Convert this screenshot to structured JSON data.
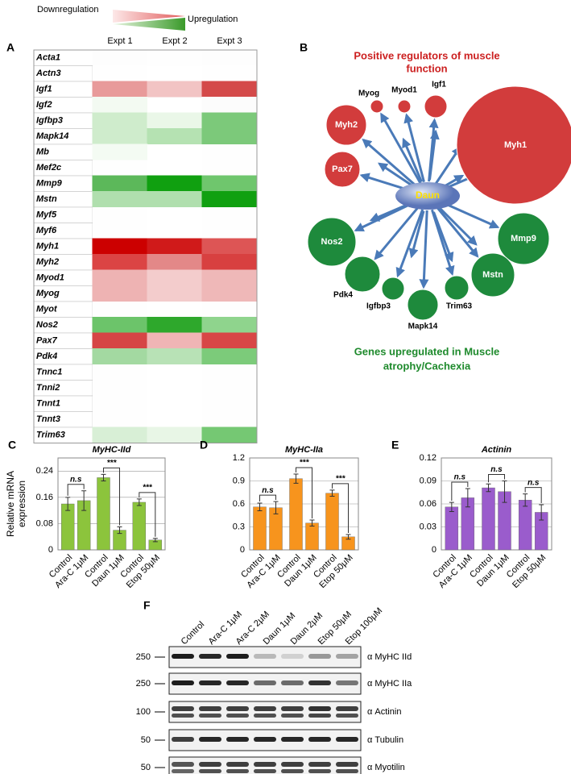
{
  "legend": {
    "down": "Downregulation",
    "up": "Upregulation"
  },
  "panel_a": {
    "label": "A",
    "columns": [
      "Expt 1",
      "Expt 2",
      "Expt 3"
    ],
    "genes": [
      "Acta1",
      "Actn3",
      "Igf1",
      "Igf2",
      "Igfbp3",
      "Mapk14",
      "Mb",
      "Mef2c",
      "Mmp9",
      "Mstn",
      "Myf5",
      "Myf6",
      "Myh1",
      "Myh2",
      "Myod1",
      "Myog",
      "Myot",
      "Nos2",
      "Pax7",
      "Pdk4",
      "Tnnc1",
      "Tnni2",
      "Tnnt1",
      "Tnnt3",
      "Trim63"
    ],
    "cells": [
      [
        "#fdfdfd",
        "#fefefe",
        "#fdfdfd"
      ],
      [
        "#fefefe",
        "#ffffff",
        "#fefefe"
      ],
      [
        "#e89a9a",
        "#f2c4c4",
        "#d44a4a"
      ],
      [
        "#f3faf2",
        "#ffffff",
        "#fcfcfc"
      ],
      [
        "#cfeccc",
        "#eaf7e8",
        "#7cc97a"
      ],
      [
        "#cfeccc",
        "#b5e2b2",
        "#7cc97a"
      ],
      [
        "#f4fbf3",
        "#ffffff",
        "#fefefe"
      ],
      [
        "#fefefe",
        "#ffffff",
        "#fefefe"
      ],
      [
        "#5cb85a",
        "#10a010",
        "#6fc66d"
      ],
      [
        "#b0dfae",
        "#b0dfae",
        "#10a010"
      ],
      [
        "#fefefe",
        "#ffffff",
        "#fefefe"
      ],
      [
        "#fefefe",
        "#ffffff",
        "#fefefe"
      ],
      [
        "#cc0000",
        "#d01a1a",
        "#dd5555"
      ],
      [
        "#db4444",
        "#e38888",
        "#d84040"
      ],
      [
        "#eeb3b3",
        "#f3cccc",
        "#efb8b8"
      ],
      [
        "#eeb3b3",
        "#f3cccc",
        "#efb8b8"
      ],
      [
        "#fefefe",
        "#ffffff",
        "#fefefe"
      ],
      [
        "#6cc46a",
        "#2ea82c",
        "#8fd48d"
      ],
      [
        "#d64545",
        "#f0b5b5",
        "#d84646"
      ],
      [
        "#a3d9a1",
        "#b8e2b6",
        "#7ccb7a"
      ],
      [
        "#fefefe",
        "#ffffff",
        "#fefefe"
      ],
      [
        "#fefefe",
        "#ffffff",
        "#fefefe"
      ],
      [
        "#fefefe",
        "#ffffff",
        "#fefefe"
      ],
      [
        "#fefefe",
        "#ffffff",
        "#fefefe"
      ],
      [
        "#d8efd6",
        "#e8f6e6",
        "#75c873"
      ]
    ]
  },
  "panel_b": {
    "label": "B",
    "title_top": [
      "Positive regulators of muscle",
      "function"
    ],
    "title_bottom": [
      "Genes upregulated in Muscle",
      "atrophy/Cachexia"
    ],
    "center": "Daun",
    "nodes": [
      {
        "label": "Myh1",
        "color": "#d23c3c"
      },
      {
        "label": "Myh2",
        "color": "#d23c3c"
      },
      {
        "label": "Pax7",
        "color": "#d23c3c"
      },
      {
        "label": "Myog",
        "color": "#d23c3c"
      },
      {
        "label": "Myod1",
        "color": "#d23c3c"
      },
      {
        "label": "Igf1",
        "color": "#d23c3c"
      },
      {
        "label": "Nos2",
        "color": "#1e8a3c"
      },
      {
        "label": "Mmp9",
        "color": "#1e8a3c"
      },
      {
        "label": "Pdk4",
        "color": "#1e8a3c"
      },
      {
        "label": "Igfbp3",
        "color": "#1e8a3c"
      },
      {
        "label": "Mapk14",
        "color": "#1e8a3c"
      },
      {
        "label": "Trim63",
        "color": "#1e8a3c"
      },
      {
        "label": "Mstn",
        "color": "#1e8a3c"
      }
    ]
  },
  "chart_data": [
    {
      "type": "bar",
      "panel": "C",
      "title": "MyHC-IId",
      "ylabel": "Relative mRNA expression",
      "categories": [
        "Control",
        "Ara-C 1μM",
        "Control",
        "Daun 1μM",
        "Control",
        "Etop 50μM"
      ],
      "values": [
        0.14,
        0.15,
        0.22,
        0.06,
        0.145,
        0.03
      ],
      "errors": [
        0.02,
        0.03,
        0.01,
        0.01,
        0.01,
        0.005
      ],
      "color": "#8cc43c",
      "ylim": [
        0,
        0.28
      ],
      "yticks": [
        0,
        0.08,
        0.16,
        0.24
      ],
      "grid": true,
      "annotations": [
        "n.s",
        "***",
        "***"
      ]
    },
    {
      "type": "bar",
      "panel": "D",
      "title": "MyHC-IIa",
      "categories": [
        "Control",
        "Ara-C 1μM",
        "Control",
        "Daun 1μM",
        "Control",
        "Etop 50μM"
      ],
      "values": [
        0.56,
        0.55,
        0.93,
        0.35,
        0.74,
        0.17
      ],
      "errors": [
        0.05,
        0.08,
        0.06,
        0.04,
        0.04,
        0.03
      ],
      "color": "#f7941d",
      "ylim": [
        0,
        1.2
      ],
      "yticks": [
        0,
        0.3,
        0.6,
        0.9,
        1.2
      ],
      "grid": true,
      "annotations": [
        "n.s",
        "***",
        "***"
      ]
    },
    {
      "type": "bar",
      "panel": "E",
      "title": "Actinin",
      "categories": [
        "Control",
        "Ara-C 1μM",
        "Control",
        "Daun 1μM",
        "Control",
        "Etop 50μM"
      ],
      "values": [
        0.056,
        0.068,
        0.081,
        0.076,
        0.065,
        0.049
      ],
      "errors": [
        0.006,
        0.012,
        0.005,
        0.014,
        0.008,
        0.01
      ],
      "color": "#9a5ccc",
      "ylim": [
        0,
        0.12
      ],
      "yticks": [
        0,
        0.03,
        0.06,
        0.09,
        0.12
      ],
      "grid": true,
      "annotations": [
        "n.s",
        "n.s",
        "n.s"
      ]
    }
  ],
  "panel_f": {
    "label": "F",
    "lanes": [
      "Control",
      "Ara-C 1μM",
      "Ara-C 2μM",
      "Daun 1μM",
      "Daun 2μM",
      "Etop 50μM",
      "Etop 100μM"
    ],
    "blots": [
      {
        "marker": "250",
        "label": "α MyHC IId"
      },
      {
        "marker": "250",
        "label": "α MyHC IIa"
      },
      {
        "marker": "100",
        "label": "α Actinin"
      },
      {
        "marker": "50",
        "label": "α Tubulin"
      },
      {
        "marker": "50",
        "label": "α Myotilin"
      }
    ]
  }
}
